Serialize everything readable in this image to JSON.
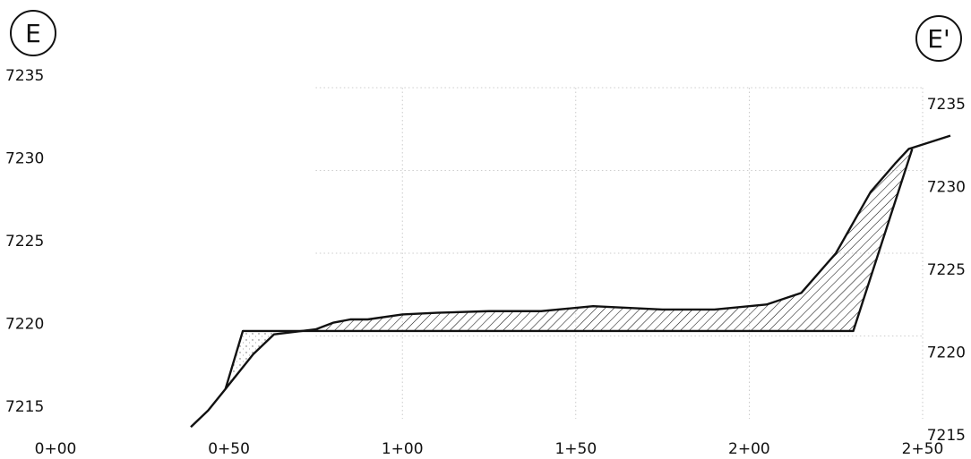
{
  "section": {
    "start_marker": "E",
    "end_marker": "E'"
  },
  "chart_data": {
    "type": "line",
    "title": "",
    "xlabel": "",
    "ylabel": "",
    "xlim": [
      0,
      250
    ],
    "ylim": [
      7215,
      7235
    ],
    "x_ticks": [
      {
        "value": 0,
        "label": "0+00"
      },
      {
        "value": 50,
        "label": "0+50"
      },
      {
        "value": 100,
        "label": "1+00"
      },
      {
        "value": 150,
        "label": "1+50"
      },
      {
        "value": 200,
        "label": "2+00"
      },
      {
        "value": 250,
        "label": "2+50"
      }
    ],
    "y_ticks_left": [
      7215,
      7220,
      7225,
      7230,
      7235
    ],
    "y_ticks_right": [
      7215,
      7220,
      7225,
      7230,
      7235
    ],
    "grid": true,
    "colors": {
      "line": "#111111",
      "grid": "#bdbdbd",
      "hatch": "#111111"
    },
    "existing_ground": [
      [
        39,
        7214.5
      ],
      [
        44,
        7215.5
      ],
      [
        49,
        7216.8
      ],
      [
        57,
        7218.9
      ],
      [
        63,
        7220.1
      ],
      [
        75,
        7220.4
      ],
      [
        80,
        7220.8
      ],
      [
        85,
        7221.0
      ],
      [
        90,
        7221.0
      ],
      [
        100,
        7221.3
      ],
      [
        110,
        7221.4
      ],
      [
        125,
        7221.5
      ],
      [
        140,
        7221.5
      ],
      [
        155,
        7221.8
      ],
      [
        175,
        7221.6
      ],
      [
        190,
        7221.6
      ],
      [
        205,
        7221.9
      ],
      [
        215,
        7222.6
      ],
      [
        225,
        7225.0
      ],
      [
        235,
        7228.7
      ],
      [
        242,
        7230.4
      ],
      [
        246,
        7231.3
      ],
      [
        258,
        7232.1
      ]
    ],
    "proposed_grade": [
      [
        49,
        7216.8
      ],
      [
        54,
        7220.3
      ],
      [
        70,
        7220.3
      ],
      [
        230,
        7220.3
      ],
      [
        247,
        7231.3
      ]
    ]
  }
}
